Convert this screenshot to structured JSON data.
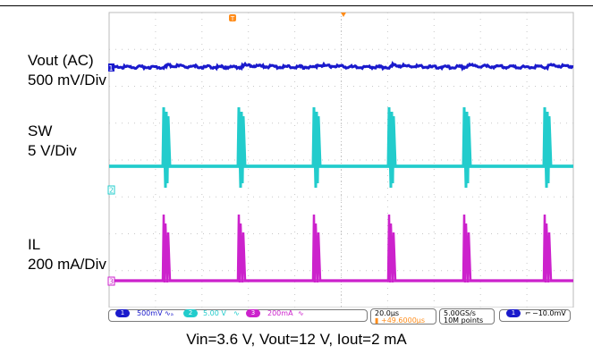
{
  "labels": {
    "vout_name": "Vout (AC)",
    "vout_scale": "500 mV/Div",
    "sw_name": "SW",
    "sw_scale": "5 V/Div",
    "il_name": "IL",
    "il_scale": "200 mA/Div"
  },
  "markers": {
    "trigger": "T",
    "ch1": "1",
    "ch2": "2",
    "ch3": "3"
  },
  "status": {
    "ch1_badge": "1",
    "ch1_scale": "500mV",
    "ch2_badge": "2",
    "ch2_scale": "5.00 V",
    "ch3_badge": "3",
    "ch3_scale": "200mA",
    "timebase": "20.0µs",
    "delay": "+49.6000µs",
    "sample_rate": "5.00GS/s",
    "record_length": "10M points",
    "trig_badge": "1",
    "trig_level": "−10.0mV"
  },
  "caption": "Vin=3.6 V, Vout=12 V, Iout=2 mA",
  "colors": {
    "ch1": "#1a1acc",
    "ch2": "#22cccc",
    "ch3": "#cc22cc",
    "trigger": "#ff8c1a",
    "grid": "#c8c8c8"
  }
}
